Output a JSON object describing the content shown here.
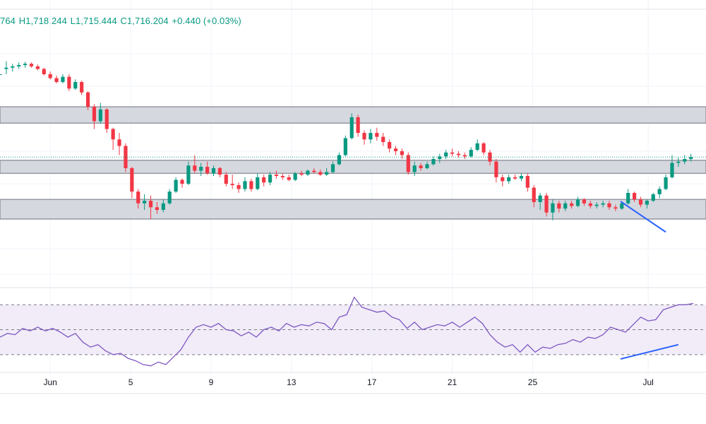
{
  "ohlc_readout": {
    "open_label": "764",
    "high": "H1,718.244",
    "low": "L1,715.444",
    "close": "C1,716.204",
    "change": "+0.440 (+0.03%)"
  },
  "colors": {
    "up": "#089981",
    "down": "#f23645",
    "zone_fill": "#d1d4dc",
    "zone_stroke": "#9598a1",
    "rsi_line": "#7e57c2",
    "rsi_band": "#ede7f6",
    "trend_line": "#2962ff",
    "last_price_line": "#089981"
  },
  "chart_data": {
    "type": "candlestick",
    "x_tick_labels": [
      "Jun",
      "5",
      "9",
      "13",
      "17",
      "21",
      "25",
      "Jul"
    ],
    "price_panel": {
      "zones": [
        {
          "top": 1727.0,
          "bottom": 1724.5
        },
        {
          "top": 1718.8,
          "bottom": 1716.8
        },
        {
          "top": 1712.8,
          "bottom": 1709.8
        }
      ],
      "last_price": 1719.3,
      "trend_line": {
        "from": [
          24.7,
          1712.5
        ],
        "to": [
          26.5,
          1707.8
        ]
      },
      "candles": [
        [
          0.0,
          1732.0,
          1732.0,
          1732.0,
          1732.0
        ],
        [
          0.25,
          1732.8,
          1734.0,
          1732.0,
          1733.0
        ],
        [
          0.5,
          1733.0,
          1733.6,
          1732.4,
          1733.2
        ],
        [
          0.75,
          1733.2,
          1733.8,
          1732.8,
          1733.4
        ],
        [
          1.0,
          1733.4,
          1733.9,
          1733.0,
          1733.6
        ],
        [
          1.25,
          1733.6,
          1733.8,
          1733.0,
          1733.2
        ],
        [
          1.5,
          1733.2,
          1733.5,
          1732.6,
          1732.8
        ],
        [
          1.75,
          1732.8,
          1733.0,
          1731.8,
          1732.0
        ],
        [
          2.0,
          1732.0,
          1732.4,
          1731.2,
          1731.4
        ],
        [
          2.25,
          1731.4,
          1731.8,
          1730.6,
          1730.8
        ],
        [
          2.5,
          1730.8,
          1732.0,
          1730.6,
          1731.6
        ],
        [
          2.75,
          1731.6,
          1732.0,
          1729.4,
          1729.8
        ],
        [
          3.0,
          1729.8,
          1731.2,
          1729.6,
          1730.8
        ],
        [
          3.25,
          1730.8,
          1731.0,
          1728.8,
          1729.2
        ],
        [
          3.5,
          1729.2,
          1729.4,
          1726.5,
          1727.0
        ],
        [
          3.75,
          1727.0,
          1727.4,
          1723.6,
          1724.8
        ],
        [
          4.0,
          1724.8,
          1727.6,
          1724.4,
          1726.6
        ],
        [
          4.25,
          1726.6,
          1726.8,
          1723.0,
          1723.6
        ],
        [
          4.5,
          1723.6,
          1723.8,
          1720.4,
          1722.0
        ],
        [
          4.75,
          1722.0,
          1723.0,
          1719.6,
          1721.0
        ],
        [
          5.0,
          1721.0,
          1721.4,
          1717.0,
          1717.6
        ],
        [
          5.25,
          1717.6,
          1717.8,
          1713.0,
          1714.0
        ],
        [
          5.5,
          1714.0,
          1714.4,
          1711.4,
          1712.2
        ],
        [
          5.75,
          1712.2,
          1713.6,
          1711.2,
          1712.6
        ],
        [
          6.0,
          1712.6,
          1713.4,
          1709.8,
          1711.6
        ],
        [
          6.25,
          1711.6,
          1712.4,
          1710.6,
          1711.2
        ],
        [
          6.5,
          1711.2,
          1712.8,
          1710.8,
          1712.2
        ],
        [
          6.75,
          1712.2,
          1714.4,
          1712.0,
          1714.0
        ],
        [
          7.0,
          1714.0,
          1716.2,
          1713.8,
          1715.8
        ],
        [
          7.25,
          1715.8,
          1716.0,
          1714.6,
          1715.2
        ],
        [
          7.5,
          1715.2,
          1718.6,
          1715.0,
          1718.0
        ],
        [
          7.75,
          1718.0,
          1719.6,
          1716.8,
          1717.2
        ],
        [
          8.0,
          1717.2,
          1718.4,
          1716.4,
          1717.8
        ],
        [
          8.25,
          1717.8,
          1718.6,
          1716.6,
          1716.8
        ],
        [
          8.5,
          1716.8,
          1718.0,
          1716.4,
          1717.6
        ],
        [
          8.75,
          1717.6,
          1717.8,
          1716.2,
          1716.6
        ],
        [
          9.0,
          1716.6,
          1717.0,
          1714.8,
          1715.2
        ],
        [
          9.25,
          1715.2,
          1716.6,
          1714.4,
          1715.0
        ],
        [
          9.5,
          1715.0,
          1715.4,
          1713.8,
          1714.4
        ],
        [
          9.75,
          1714.4,
          1716.2,
          1714.0,
          1715.6
        ],
        [
          10.0,
          1715.6,
          1716.0,
          1714.0,
          1714.4
        ],
        [
          10.25,
          1714.4,
          1716.8,
          1714.2,
          1716.2
        ],
        [
          10.5,
          1716.2,
          1716.6,
          1714.8,
          1715.4
        ],
        [
          10.75,
          1715.4,
          1717.0,
          1715.0,
          1716.6
        ],
        [
          11.0,
          1716.6,
          1717.2,
          1716.0,
          1716.4
        ],
        [
          11.25,
          1716.4,
          1716.8,
          1715.8,
          1716.2
        ],
        [
          11.5,
          1716.2,
          1716.6,
          1715.6,
          1715.8
        ],
        [
          11.75,
          1715.8,
          1717.0,
          1715.6,
          1716.8
        ],
        [
          12.0,
          1716.8,
          1717.2,
          1716.4,
          1716.6
        ],
        [
          12.25,
          1716.6,
          1717.4,
          1716.4,
          1717.2
        ],
        [
          12.5,
          1717.2,
          1717.6,
          1716.8,
          1717.0
        ],
        [
          12.75,
          1717.0,
          1717.4,
          1716.4,
          1716.6
        ],
        [
          13.0,
          1716.6,
          1717.6,
          1716.4,
          1717.0
        ],
        [
          13.25,
          1717.0,
          1718.6,
          1716.8,
          1718.2
        ],
        [
          13.5,
          1718.2,
          1720.0,
          1718.0,
          1719.6
        ],
        [
          13.75,
          1719.6,
          1722.6,
          1719.4,
          1722.2
        ],
        [
          14.0,
          1722.2,
          1726.0,
          1722.0,
          1725.4
        ],
        [
          14.25,
          1725.4,
          1725.8,
          1722.4,
          1723.0
        ],
        [
          14.5,
          1723.0,
          1723.4,
          1721.2,
          1722.0
        ],
        [
          14.75,
          1722.0,
          1723.6,
          1721.4,
          1723.0
        ],
        [
          15.0,
          1723.0,
          1723.8,
          1721.8,
          1722.4
        ],
        [
          15.25,
          1722.4,
          1723.0,
          1721.0,
          1721.6
        ],
        [
          15.5,
          1721.6,
          1722.0,
          1720.0,
          1720.6
        ],
        [
          15.75,
          1720.6,
          1721.0,
          1719.6,
          1720.2
        ],
        [
          16.0,
          1720.2,
          1720.6,
          1719.0,
          1719.6
        ],
        [
          16.25,
          1719.6,
          1720.0,
          1716.6,
          1717.0
        ],
        [
          16.5,
          1717.0,
          1718.6,
          1716.4,
          1718.0
        ],
        [
          16.75,
          1718.0,
          1718.4,
          1717.2,
          1717.6
        ],
        [
          17.0,
          1717.6,
          1718.6,
          1717.4,
          1718.2
        ],
        [
          17.25,
          1718.2,
          1719.4,
          1718.0,
          1719.0
        ],
        [
          17.5,
          1719.0,
          1719.8,
          1718.4,
          1719.4
        ],
        [
          17.75,
          1719.4,
          1720.4,
          1719.0,
          1720.0
        ],
        [
          18.0,
          1720.0,
          1720.6,
          1719.4,
          1719.8
        ],
        [
          18.25,
          1719.8,
          1720.2,
          1719.2,
          1719.6
        ],
        [
          18.5,
          1719.6,
          1720.0,
          1719.0,
          1719.4
        ],
        [
          18.75,
          1719.4,
          1720.8,
          1719.2,
          1720.4
        ],
        [
          19.0,
          1720.4,
          1722.0,
          1720.2,
          1721.4
        ],
        [
          19.25,
          1721.4,
          1721.6,
          1719.6,
          1720.0
        ],
        [
          19.5,
          1720.0,
          1720.4,
          1718.0,
          1718.6
        ],
        [
          19.75,
          1718.6,
          1719.0,
          1715.4,
          1716.2
        ],
        [
          20.0,
          1716.2,
          1716.6,
          1714.8,
          1715.6
        ],
        [
          20.25,
          1715.6,
          1716.6,
          1715.2,
          1716.2
        ],
        [
          20.5,
          1716.2,
          1716.6,
          1715.8,
          1716.0
        ],
        [
          20.75,
          1716.0,
          1716.8,
          1715.6,
          1716.4
        ],
        [
          21.0,
          1716.4,
          1716.8,
          1714.0,
          1714.6
        ],
        [
          21.25,
          1714.6,
          1715.0,
          1711.6,
          1712.4
        ],
        [
          21.5,
          1712.4,
          1713.8,
          1711.2,
          1713.4
        ],
        [
          21.75,
          1713.4,
          1713.8,
          1710.2,
          1710.8
        ],
        [
          22.0,
          1710.8,
          1712.8,
          1709.6,
          1712.2
        ],
        [
          22.25,
          1712.2,
          1712.6,
          1710.8,
          1711.4
        ],
        [
          22.5,
          1711.4,
          1712.6,
          1711.0,
          1712.2
        ],
        [
          22.75,
          1712.2,
          1712.6,
          1711.4,
          1711.8
        ],
        [
          23.0,
          1711.8,
          1713.2,
          1711.6,
          1712.8
        ],
        [
          23.25,
          1712.8,
          1713.0,
          1711.8,
          1712.2
        ],
        [
          23.5,
          1712.2,
          1712.6,
          1711.4,
          1711.8
        ],
        [
          23.75,
          1711.8,
          1712.4,
          1711.4,
          1712.0
        ],
        [
          24.0,
          1712.0,
          1712.6,
          1711.6,
          1712.2
        ],
        [
          24.25,
          1712.2,
          1712.6,
          1711.2,
          1711.6
        ],
        [
          24.5,
          1711.6,
          1712.0,
          1711.0,
          1711.4
        ],
        [
          24.75,
          1711.4,
          1712.4,
          1711.2,
          1712.2
        ],
        [
          25.0,
          1712.2,
          1714.4,
          1712.0,
          1713.8
        ],
        [
          25.25,
          1713.8,
          1714.0,
          1712.4,
          1712.8
        ],
        [
          25.5,
          1712.8,
          1713.2,
          1711.6,
          1712.0
        ],
        [
          25.75,
          1712.0,
          1712.8,
          1711.4,
          1712.6
        ],
        [
          26.0,
          1712.6,
          1713.8,
          1712.4,
          1713.6
        ],
        [
          26.25,
          1713.6,
          1714.8,
          1713.0,
          1714.4
        ],
        [
          26.5,
          1714.4,
          1716.6,
          1714.2,
          1716.2
        ],
        [
          26.75,
          1716.2,
          1719.6,
          1716.0,
          1718.4
        ],
        [
          27.0,
          1718.4,
          1719.2,
          1717.8,
          1718.6
        ],
        [
          27.25,
          1718.6,
          1719.6,
          1718.2,
          1719.0
        ],
        [
          27.5,
          1719.0,
          1719.8,
          1718.6,
          1719.3
        ]
      ]
    },
    "rsi_panel": {
      "ylim": [
        18,
        82
      ],
      "upper_band": 70,
      "lower_band": 30,
      "midline": 50,
      "trend_line": {
        "from": [
          24.7,
          26.5
        ],
        "to": [
          27.0,
          38.0
        ]
      },
      "points": [
        [
          0.0,
          44
        ],
        [
          0.3,
          47
        ],
        [
          0.6,
          46
        ],
        [
          0.9,
          51
        ],
        [
          1.2,
          49
        ],
        [
          1.5,
          52
        ],
        [
          1.8,
          49
        ],
        [
          2.1,
          51
        ],
        [
          2.4,
          48
        ],
        [
          2.7,
          44
        ],
        [
          3.0,
          47
        ],
        [
          3.3,
          40
        ],
        [
          3.6,
          36
        ],
        [
          3.9,
          38
        ],
        [
          4.2,
          33
        ],
        [
          4.5,
          30
        ],
        [
          4.8,
          31
        ],
        [
          5.1,
          27
        ],
        [
          5.4,
          25
        ],
        [
          5.7,
          22
        ],
        [
          6.0,
          21
        ],
        [
          6.3,
          24
        ],
        [
          6.6,
          22
        ],
        [
          6.9,
          28
        ],
        [
          7.2,
          34
        ],
        [
          7.5,
          44
        ],
        [
          7.8,
          52
        ],
        [
          8.1,
          54
        ],
        [
          8.4,
          52
        ],
        [
          8.7,
          55
        ],
        [
          9.0,
          50
        ],
        [
          9.3,
          49
        ],
        [
          9.6,
          45
        ],
        [
          9.9,
          48
        ],
        [
          10.2,
          44
        ],
        [
          10.5,
          50
        ],
        [
          10.8,
          52
        ],
        [
          11.1,
          49
        ],
        [
          11.4,
          55
        ],
        [
          11.7,
          52
        ],
        [
          12.0,
          54
        ],
        [
          12.3,
          53
        ],
        [
          12.6,
          56
        ],
        [
          12.9,
          55
        ],
        [
          13.2,
          50
        ],
        [
          13.5,
          60
        ],
        [
          13.8,
          62
        ],
        [
          14.1,
          76
        ],
        [
          14.4,
          68
        ],
        [
          14.7,
          66
        ],
        [
          15.0,
          64
        ],
        [
          15.3,
          65
        ],
        [
          15.6,
          60
        ],
        [
          15.9,
          58
        ],
        [
          16.2,
          51
        ],
        [
          16.5,
          56
        ],
        [
          16.8,
          50
        ],
        [
          17.1,
          52
        ],
        [
          17.4,
          54
        ],
        [
          17.7,
          53
        ],
        [
          18.0,
          56
        ],
        [
          18.3,
          52
        ],
        [
          18.6,
          56
        ],
        [
          18.9,
          60
        ],
        [
          19.2,
          55
        ],
        [
          19.5,
          46
        ],
        [
          19.8,
          40
        ],
        [
          20.1,
          36
        ],
        [
          20.4,
          38
        ],
        [
          20.7,
          32
        ],
        [
          21.0,
          38
        ],
        [
          21.3,
          32
        ],
        [
          21.6,
          36
        ],
        [
          21.9,
          35
        ],
        [
          22.2,
          38
        ],
        [
          22.5,
          39
        ],
        [
          22.8,
          42
        ],
        [
          23.1,
          40
        ],
        [
          23.4,
          44
        ],
        [
          23.7,
          43
        ],
        [
          24.0,
          46
        ],
        [
          24.3,
          52
        ],
        [
          24.6,
          50
        ],
        [
          24.9,
          48
        ],
        [
          25.2,
          54
        ],
        [
          25.5,
          60
        ],
        [
          25.8,
          57
        ],
        [
          26.1,
          58
        ],
        [
          26.4,
          66
        ],
        [
          26.7,
          68
        ],
        [
          27.0,
          70
        ],
        [
          27.3,
          70
        ],
        [
          27.6,
          71
        ]
      ]
    },
    "x_range": [
      0,
      28.1
    ],
    "x_ticks": [
      2.0,
      5.2,
      8.4,
      11.6,
      14.8,
      18.0,
      21.2,
      25.8
    ]
  }
}
